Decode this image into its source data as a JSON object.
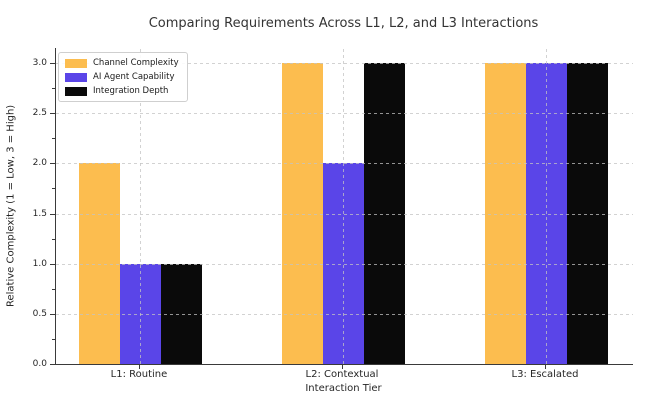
{
  "chart_data": {
    "type": "bar",
    "title": "Comparing Requirements Across L1, L2, and L3 Interactions",
    "xlabel": "Interaction Tier",
    "ylabel": "Relative Complexity (1 = Low, 3 = High)",
    "categories": [
      "L1: Routine",
      "L2: Contextual",
      "L3: Escalated"
    ],
    "series": [
      {
        "name": "Channel Complexity",
        "color": "#fcbd4f",
        "values": [
          2,
          3,
          3
        ]
      },
      {
        "name": "AI Agent Capability",
        "color": "#5a45e8",
        "values": [
          1,
          2,
          3
        ]
      },
      {
        "name": "Integration Depth",
        "color": "#0a0a0a",
        "values": [
          1,
          3,
          3
        ]
      }
    ],
    "ylim": [
      0,
      3.15
    ],
    "yticks": [
      0.0,
      0.5,
      1.0,
      1.5,
      2.0,
      2.5,
      3.0
    ],
    "ytick_minor_step": 0.25,
    "grid": true,
    "grid_style": "dashed",
    "legend_position": "upper left",
    "background": "#ffffff",
    "text_color": "#262626",
    "title_color": "#333333"
  }
}
